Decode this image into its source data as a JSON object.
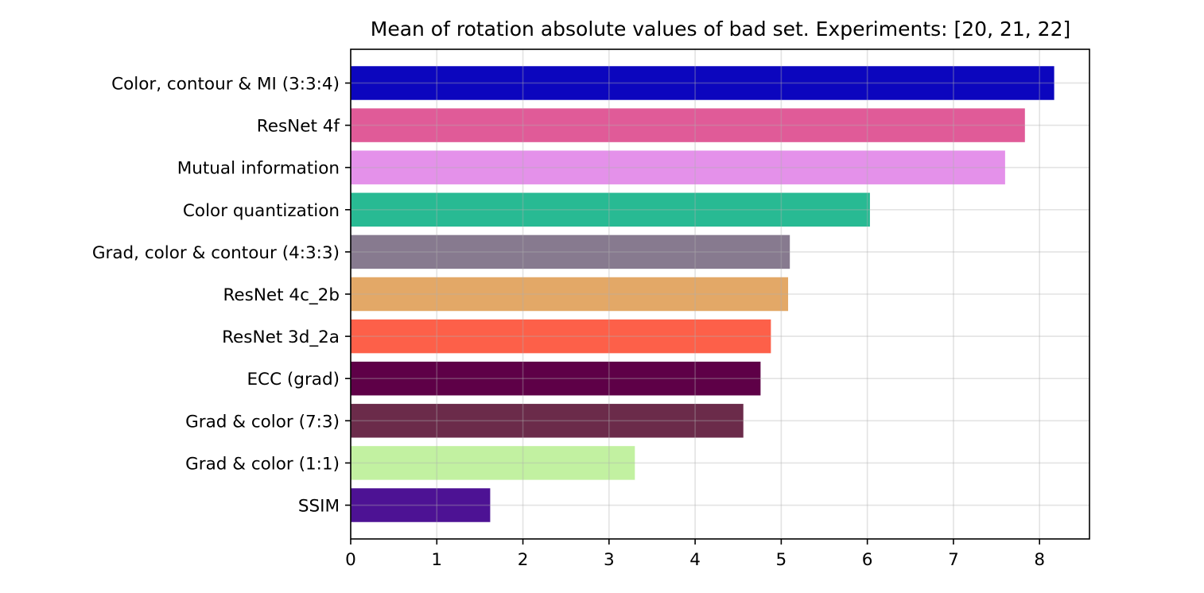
{
  "chart_data": {
    "type": "bar",
    "orientation": "horizontal",
    "title": "Mean of rotation absolute values of bad set. Experiments: [20, 21, 22]",
    "xlabel": "",
    "ylabel": "",
    "xlim": [
      0,
      8.58
    ],
    "xticks": [
      0,
      1,
      2,
      3,
      4,
      5,
      6,
      7,
      8
    ],
    "grid": true,
    "categories": [
      "Color, contour & MI (3:3:4)",
      "ResNet 4f",
      "Mutual information",
      "Color quantization",
      "Grad, color & contour (4:3:3)",
      "ResNet 4c_2b",
      "ResNet 3d_2a",
      "ECC (grad)",
      "Grad & color (7:3)",
      "Grad & color (1:1)",
      "SSIM"
    ],
    "values": [
      8.17,
      7.83,
      7.6,
      6.03,
      5.1,
      5.08,
      4.88,
      4.76,
      4.56,
      3.3,
      1.62
    ],
    "colors": [
      "#0c06be",
      "#e05b98",
      "#e491ea",
      "#28ba93",
      "#877a8f",
      "#e3a867",
      "#fd6049",
      "#5e0047",
      "#6b2b4a",
      "#c2f1a1",
      "#4d1294"
    ]
  }
}
